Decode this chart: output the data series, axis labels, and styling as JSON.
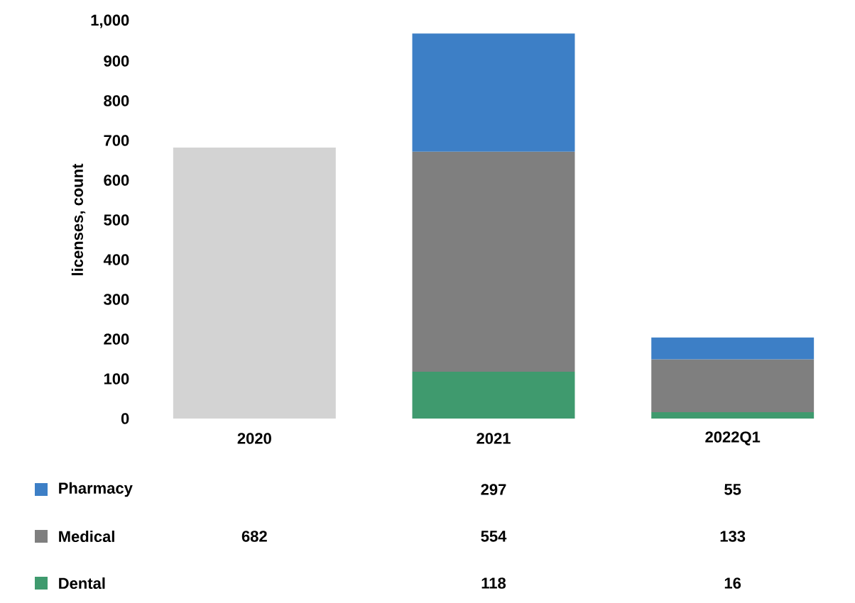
{
  "chart_data": {
    "type": "bar",
    "stacked": true,
    "ylabel": "licenses, count",
    "categories": [
      "2020",
      "2021",
      "2022Q1"
    ],
    "series": [
      {
        "name": "Dental",
        "color": "#3f9a6e",
        "values": [
          null,
          118,
          16
        ]
      },
      {
        "name": "Medical",
        "color": "#7f7f7f",
        "colors": [
          "#d3d3d3",
          "#7f7f7f",
          "#7f7f7f"
        ],
        "values": [
          682,
          554,
          133
        ]
      },
      {
        "name": "Pharmacy",
        "color": "#3d7fc6",
        "values": [
          null,
          297,
          55
        ]
      }
    ],
    "ylim": [
      0,
      1000
    ],
    "yticks": [
      0,
      100,
      200,
      300,
      400,
      500,
      600,
      700,
      800,
      900,
      {
        "value": 1000,
        "label": "1,000"
      }
    ],
    "data_labels": true,
    "legend": "bottom"
  }
}
